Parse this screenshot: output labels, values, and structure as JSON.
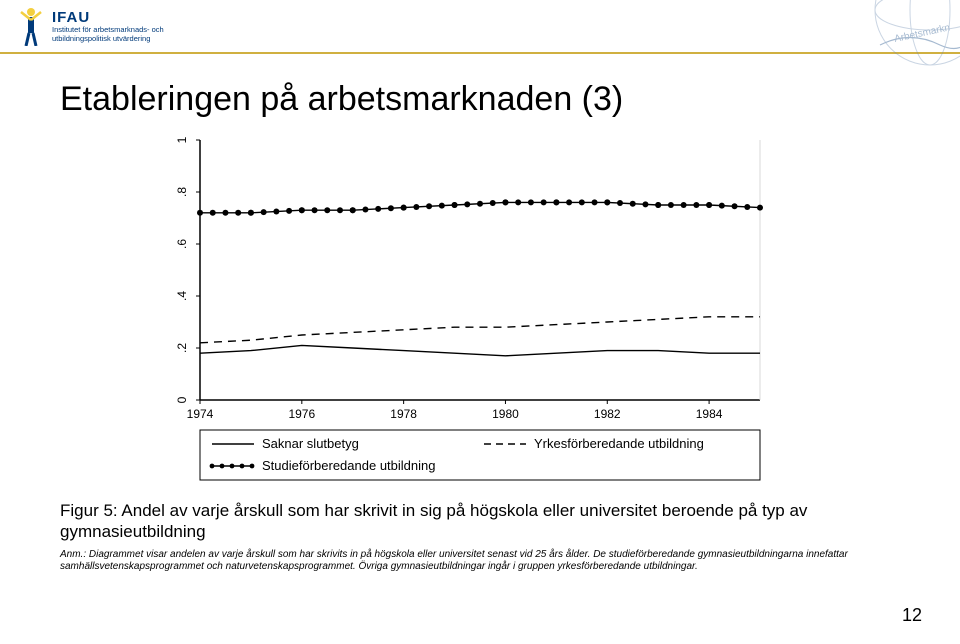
{
  "header": {
    "org_name": "IFAU",
    "org_sub": "Institutet för arbetsmarknads- och utbildningspolitisk utvärdering",
    "logo_colors": {
      "head": "#f3cf3f",
      "body": "#003a7a",
      "arm": "#f3cf3f"
    },
    "corner_text": "Arbetsmarknad"
  },
  "title": "Etableringen på arbetsmarknaden (3)",
  "chart": {
    "type": "line",
    "background_color": "#ffffff",
    "axis_color": "#000000",
    "tick_fontsize": 12,
    "xlim": [
      1974,
      1985
    ],
    "xticks": [
      1974,
      1976,
      1978,
      1980,
      1982,
      1984
    ],
    "ylim": [
      0,
      1
    ],
    "yticks": [
      0,
      0.2,
      0.4,
      0.6,
      0.8,
      1
    ],
    "ytick_labels": [
      "0",
      ".2",
      ".4",
      ".6",
      ".8",
      "1"
    ],
    "series": [
      {
        "name": "Saknar slutbetyg",
        "style": "solid",
        "color": "#000000",
        "line_width": 1.4,
        "marker": "none",
        "x": [
          1974,
          1975,
          1976,
          1977,
          1978,
          1979,
          1980,
          1981,
          1982,
          1983,
          1984,
          1985
        ],
        "y": [
          0.18,
          0.19,
          0.21,
          0.2,
          0.19,
          0.18,
          0.17,
          0.18,
          0.19,
          0.19,
          0.18,
          0.18
        ]
      },
      {
        "name": "Yrkesförberedande utbildning",
        "style": "dashed",
        "color": "#000000",
        "line_width": 1.4,
        "marker": "none",
        "x": [
          1974,
          1975,
          1976,
          1977,
          1978,
          1979,
          1980,
          1981,
          1982,
          1983,
          1984,
          1985
        ],
        "y": [
          0.22,
          0.23,
          0.25,
          0.26,
          0.27,
          0.28,
          0.28,
          0.29,
          0.3,
          0.31,
          0.32,
          0.32
        ]
      },
      {
        "name": "Studieförberedande utbildning",
        "style": "solid",
        "color": "#000000",
        "line_width": 1.4,
        "marker": "circle",
        "marker_size": 3,
        "x": [
          1974,
          1975,
          1976,
          1977,
          1978,
          1979,
          1980,
          1981,
          1982,
          1983,
          1984,
          1985
        ],
        "y": [
          0.72,
          0.72,
          0.73,
          0.73,
          0.74,
          0.75,
          0.76,
          0.76,
          0.76,
          0.75,
          0.75,
          0.74
        ]
      }
    ],
    "legend": {
      "position": "bottom",
      "border_color": "#000000",
      "items": [
        {
          "label": "Saknar slutbetyg",
          "style": "solid",
          "marker": "none"
        },
        {
          "label": "Yrkesförberedande utbildning",
          "style": "dashed",
          "marker": "none"
        },
        {
          "label": "Studieförberedande utbildning",
          "style": "solid",
          "marker": "circle"
        }
      ]
    }
  },
  "figure_caption": "Figur 5: Andel av varje årskull som har skrivit in sig på högskola eller universitet beroende på typ av gymnasieutbildning",
  "note": "Anm.: Diagrammet visar andelen av varje årskull som har skrivits in på högskola eller universitet senast vid 25 års ålder. De studieförberedande gymnasieutbildningarna innefattar samhällsvetenskapsprogrammet och naturvetenskapsprogrammet. Övriga gymnasieutbildningar ingår i gruppen yrkesförberedande utbildningar.",
  "page_number": "12"
}
